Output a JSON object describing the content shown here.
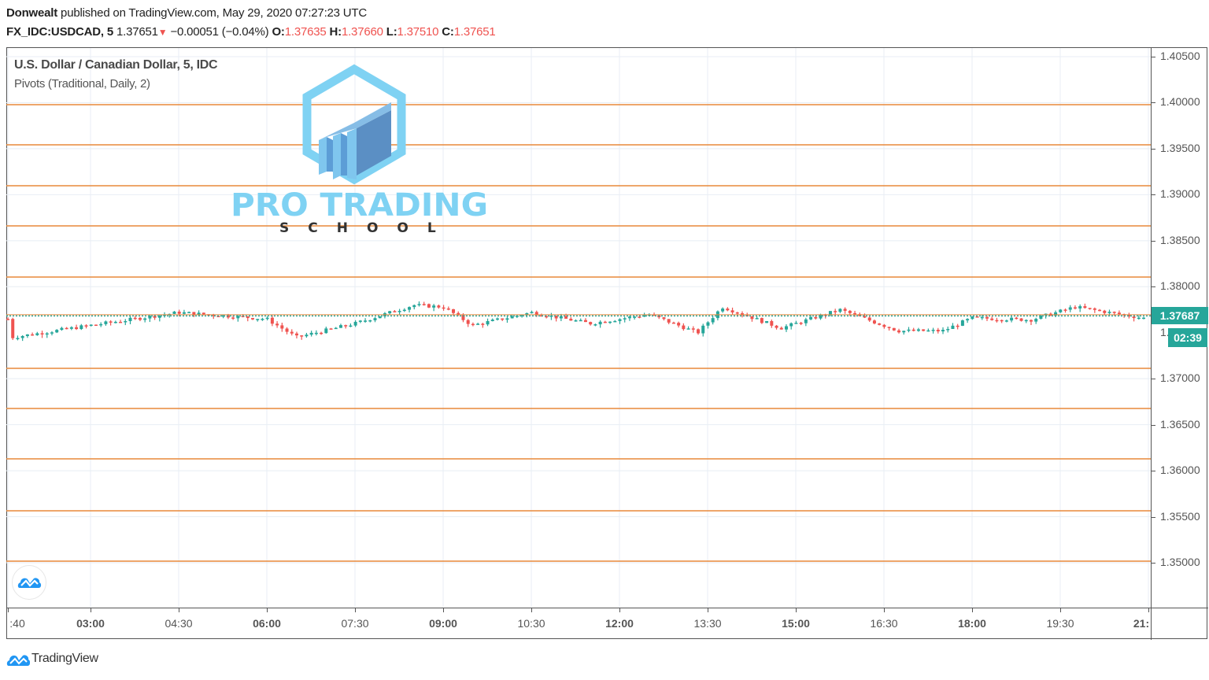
{
  "header": {
    "author": "Donwealt",
    "published_text": " published on TradingView.com, May 29, 2020 07:27:23 UTC",
    "symbol": "FX_IDC:USDCAD, 5",
    "last": "1.37651",
    "change_icon": "down-triangle-icon",
    "change_glyph": "▼",
    "change": "−0.00051 (−0.04%)",
    "o_label": "O:",
    "o": "1.37635",
    "h_label": "H:",
    "h": "1.37660",
    "l_label": "L:",
    "l": "1.37510",
    "c_label": "C:",
    "c": "1.37651"
  },
  "legend": {
    "title": "U.S. Dollar / Canadian Dollar, 5, IDC",
    "indicator": "Pivots (Traditional, Daily, 2)"
  },
  "watermark": {
    "line1": "PRO TRADING",
    "line2": "SCHOOL"
  },
  "badges": {
    "price": "1.37687",
    "countdown": "02:39",
    "hidden_label": "1."
  },
  "footer": {
    "brand": "TradingView"
  },
  "colors": {
    "up": "#26a69a",
    "down": "#ef5350",
    "pivot": "#e8893a",
    "grid": "#e8eef4",
    "price_line": "#26a69a",
    "accent": "#2196f3"
  },
  "chart_data": {
    "type": "candlestick",
    "title": "U.S. Dollar / Canadian Dollar, 5, IDC",
    "subtitle": "Pivots (Traditional, Daily, 2)",
    "xlabel": "",
    "ylabel": "",
    "ylim": [
      1.345,
      1.4055
    ],
    "grid": true,
    "legend_position": "top-left",
    "price_ticks": [
      "1.40500",
      "1.40000",
      "1.39500",
      "1.39000",
      "1.38500",
      "1.38000",
      "1.37000",
      "1.36500",
      "1.36000",
      "1.35500",
      "1.35000"
    ],
    "time_ticks": [
      {
        "label": ":40",
        "bold": false
      },
      {
        "label": "03:00",
        "bold": true
      },
      {
        "label": "04:30",
        "bold": false
      },
      {
        "label": "06:00",
        "bold": true
      },
      {
        "label": "07:30",
        "bold": false
      },
      {
        "label": "09:00",
        "bold": true
      },
      {
        "label": "10:30",
        "bold": false
      },
      {
        "label": "12:00",
        "bold": true
      },
      {
        "label": "13:30",
        "bold": false
      },
      {
        "label": "15:00",
        "bold": true
      },
      {
        "label": "16:30",
        "bold": false
      },
      {
        "label": "18:00",
        "bold": true
      },
      {
        "label": "19:30",
        "bold": false
      },
      {
        "label": "21:",
        "bold": true
      }
    ],
    "pivot_levels": [
      1.3995,
      1.3951,
      1.3907,
      1.3863,
      1.3807,
      1.3708,
      1.3664,
      1.3609,
      1.3553,
      1.3498
    ],
    "current_price": 1.37687,
    "countdown": "02:39",
    "ohlc": {
      "open": 1.37635,
      "high": 1.3766,
      "low": 1.3751,
      "close": 1.37651
    },
    "price_path_approx": [
      {
        "time": "01:40",
        "price": 1.3745
      },
      {
        "time": "03:00",
        "price": 1.3758
      },
      {
        "time": "04:30",
        "price": 1.3772
      },
      {
        "time": "06:00",
        "price": 1.3765
      },
      {
        "time": "06:30",
        "price": 1.3745
      },
      {
        "time": "07:30",
        "price": 1.376
      },
      {
        "time": "08:30",
        "price": 1.378
      },
      {
        "time": "09:00",
        "price": 1.3778
      },
      {
        "time": "09:30",
        "price": 1.3758
      },
      {
        "time": "10:30",
        "price": 1.3772
      },
      {
        "time": "11:30",
        "price": 1.376
      },
      {
        "time": "12:30",
        "price": 1.377
      },
      {
        "time": "13:20",
        "price": 1.375
      },
      {
        "time": "13:45",
        "price": 1.3778
      },
      {
        "time": "14:45",
        "price": 1.3755
      },
      {
        "time": "15:45",
        "price": 1.3775
      },
      {
        "time": "16:45",
        "price": 1.3752
      },
      {
        "time": "17:30",
        "price": 1.3752
      },
      {
        "time": "18:00",
        "price": 1.3766
      },
      {
        "time": "19:00",
        "price": 1.3764
      },
      {
        "time": "19:45",
        "price": 1.3778
      },
      {
        "time": "21:00",
        "price": 1.3765
      }
    ]
  }
}
